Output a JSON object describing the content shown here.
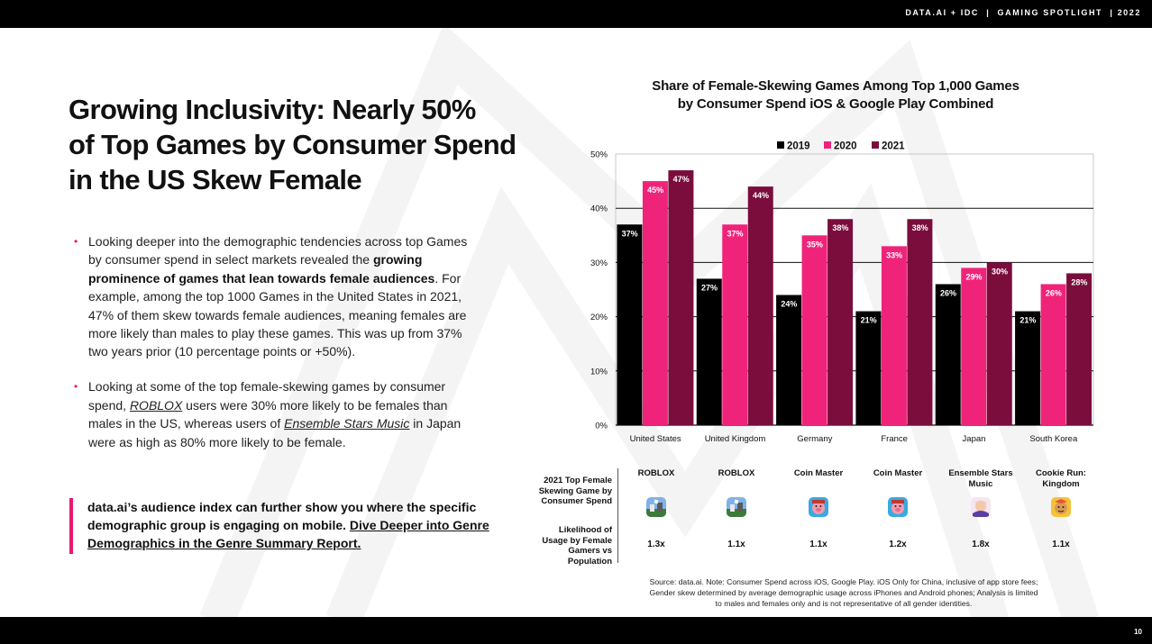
{
  "header": {
    "title": "DATA.AI + IDC  |  GAMING SPOTLIGHT  | 2022"
  },
  "footer": {
    "page_number": "10"
  },
  "headline": {
    "line1": "Growing Inclusivity: Nearly 50%",
    "line2": "of Top Games by Consumer Spend",
    "line3": "in the US Skew Female"
  },
  "bullets": {
    "b1": {
      "part1": "Looking deeper into the demographic tendencies across top Games by consumer spend in select markets revealed the ",
      "bold": "growing prominence of games that lean towards female audiences",
      "part2": ". For example, among the top 1000 Games in the United States in 2021, 47% of them skew  towards female audiences, meaning females are more likely than males to play these games. This was up from 37% two years prior (10 percentage points or +50%)."
    },
    "b2": {
      "part1": "Looking at some of the top female-skewing games by consumer spend, ",
      "game1": "ROBLOX",
      "part2": " users were 30% more likely to be females than males in the US, whereas users of ",
      "game2": "Ensemble Stars Music",
      "part3": " in Japan were as high as 80% more likely to be female."
    }
  },
  "callout": {
    "text": "data.ai’s audience index can further show you where the specific demographic group is engaging on mobile. ",
    "link1": "Dive Deeper into Genre Demographics",
    "link2": " in the Genre Summary Report."
  },
  "colors": {
    "y2019": "#000000",
    "y2020": "#f0237a",
    "y2021": "#7a0d3c",
    "accent": "#e8196f"
  },
  "chart_data": {
    "type": "bar",
    "title_line1": "Share of Female-Skewing Games Among Top 1,000 Games",
    "title_line2": "by Consumer Spend iOS & Google Play Combined",
    "categories": [
      "United States",
      "United Kingdom",
      "Germany",
      "France",
      "Japan",
      "South Korea"
    ],
    "series": [
      {
        "name": "2019",
        "values": [
          37,
          27,
          24,
          21,
          26,
          21
        ]
      },
      {
        "name": "2020",
        "values": [
          45,
          37,
          35,
          33,
          29,
          26
        ]
      },
      {
        "name": "2021",
        "values": [
          47,
          44,
          38,
          38,
          30,
          28
        ]
      }
    ],
    "yticks": [
      "0%",
      "10%",
      "20%",
      "30%",
      "40%",
      "50%"
    ],
    "ylim": [
      0,
      50
    ],
    "legend_position": "top-center",
    "grid": true
  },
  "game_table": {
    "row1_label": "2021 Top Female Skewing Game by Consumer Spend",
    "row2_label": "Likelihood of Usage by Female Gamers vs Population",
    "games": [
      {
        "name": "ROBLOX",
        "ratio": "1.3x",
        "icon": "roblox-icon"
      },
      {
        "name": "ROBLOX",
        "ratio": "1.1x",
        "icon": "roblox-icon"
      },
      {
        "name": "Coin Master",
        "ratio": "1.1x",
        "icon": "coin-master-icon"
      },
      {
        "name": "Coin Master",
        "ratio": "1.2x",
        "icon": "coin-master-icon"
      },
      {
        "name": "Ensemble Stars Music",
        "ratio": "1.8x",
        "icon": "ensemble-stars-icon"
      },
      {
        "name": "Cookie Run: Kingdom",
        "ratio": "1.1x",
        "icon": "cookie-run-icon"
      }
    ]
  },
  "source": {
    "line1": "Source: data.ai. Note: Consumer Spend across iOS, Google Play. iOS Only for China, inclusive of app store fees;",
    "line2": "Gender skew determined by average demographic usage across iPhones and Android phones; Analysis is limited",
    "line3": "to males and females only and is not representative of all gender identities."
  }
}
